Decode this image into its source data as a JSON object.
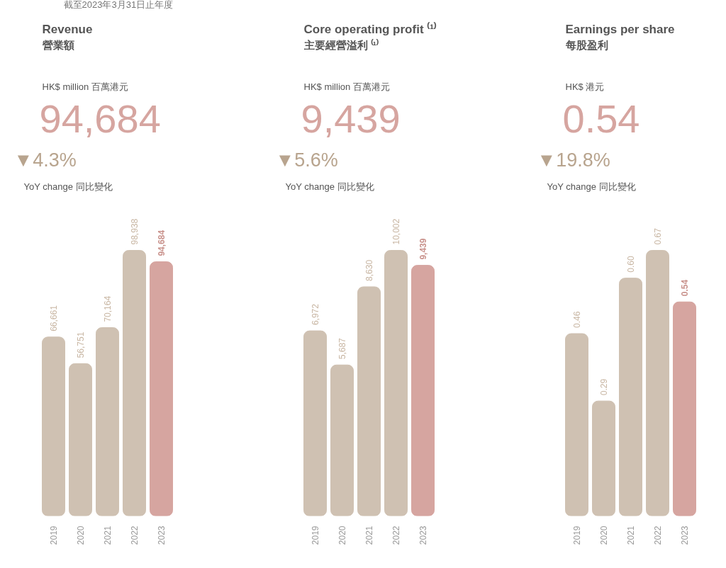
{
  "chart_data": [
    {
      "type": "bar",
      "title": "Revenue",
      "subtitle": "營業額",
      "categories": [
        "2019",
        "2020",
        "2021",
        "2022",
        "2023"
      ],
      "values": [
        66661,
        56751,
        70164,
        98938,
        94684
      ],
      "colors": [
        "#cfc1b2",
        "#cfc1b2",
        "#cfc1b2",
        "#cfc1b2",
        "#d6a5a0"
      ],
      "data_labels": true,
      "value_labels": [
        "66,661",
        "56,751",
        "70,164",
        "98,938",
        "94,684"
      ],
      "annotations": [
        "HK$ million 百萬港元",
        "94,684",
        "▼4.3%",
        "YoY change 同比變化",
        "截至2023年3月31日止年度"
      ]
    },
    {
      "type": "bar",
      "title": "Core operating profit ⁽¹⁾",
      "subtitle": "主要經營溢利 ⁽¹⁾",
      "categories": [
        "2019",
        "2020",
        "2021",
        "2022",
        "2023"
      ],
      "values": [
        6972,
        5687,
        8630,
        10002,
        9439
      ],
      "colors": [
        "#cfc1b2",
        "#cfc1b2",
        "#cfc1b2",
        "#cfc1b2",
        "#d6a5a0"
      ],
      "data_labels": true,
      "value_labels": [
        "6,972",
        "5,687",
        "8,630",
        "10,002",
        "9,439"
      ],
      "annotations": [
        "HK$ million 百萬港元",
        "9,439",
        "▼5.6%",
        "YoY change 同比變化"
      ]
    },
    {
      "type": "bar",
      "title": "Earnings per share",
      "subtitle": "每股盈利",
      "categories": [
        "2019",
        "2020",
        "2021",
        "2022",
        "2023"
      ],
      "values": [
        0.46,
        0.29,
        0.6,
        0.67,
        0.54
      ],
      "colors": [
        "#cfc1b2",
        "#cfc1b2",
        "#cfc1b2",
        "#cfc1b2",
        "#d6a5a0"
      ],
      "data_labels": true,
      "value_labels": [
        "0.46",
        "0.29",
        "0.60",
        "0.67",
        "0.54"
      ],
      "annotations": [
        "HK$ 港元",
        "0.54",
        "▼19.8%",
        "YoY change 同比變化"
      ]
    }
  ]
}
